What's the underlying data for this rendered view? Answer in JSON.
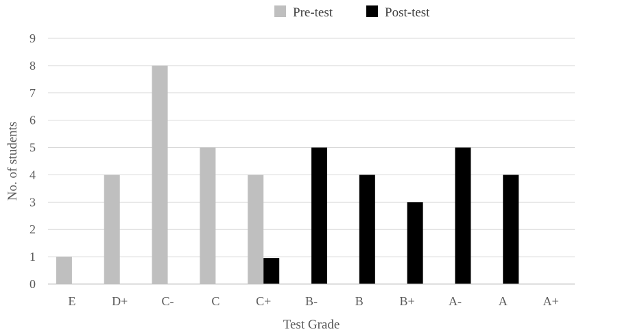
{
  "chart_data": {
    "type": "bar",
    "title": "",
    "xlabel": "Test Grade",
    "ylabel": "No. of students",
    "ylim": [
      0,
      9
    ],
    "yticks": [
      0,
      1,
      2,
      3,
      4,
      5,
      6,
      7,
      8,
      9
    ],
    "grid": true,
    "legend_position": "top-center",
    "categories": [
      "E",
      "D+",
      "C-",
      "C",
      "C+",
      "B-",
      "B",
      "B+",
      "A-",
      "A",
      "A+"
    ],
    "series": [
      {
        "name": "Pre-test",
        "color": "#bfbfbf",
        "values": [
          1,
          4,
          8,
          5,
          4,
          0,
          0,
          0,
          0,
          0,
          0
        ]
      },
      {
        "name": "Post-test",
        "color": "#000000",
        "values": [
          0,
          0,
          0,
          0,
          0.95,
          5,
          4,
          3,
          5,
          4,
          0
        ]
      }
    ]
  }
}
